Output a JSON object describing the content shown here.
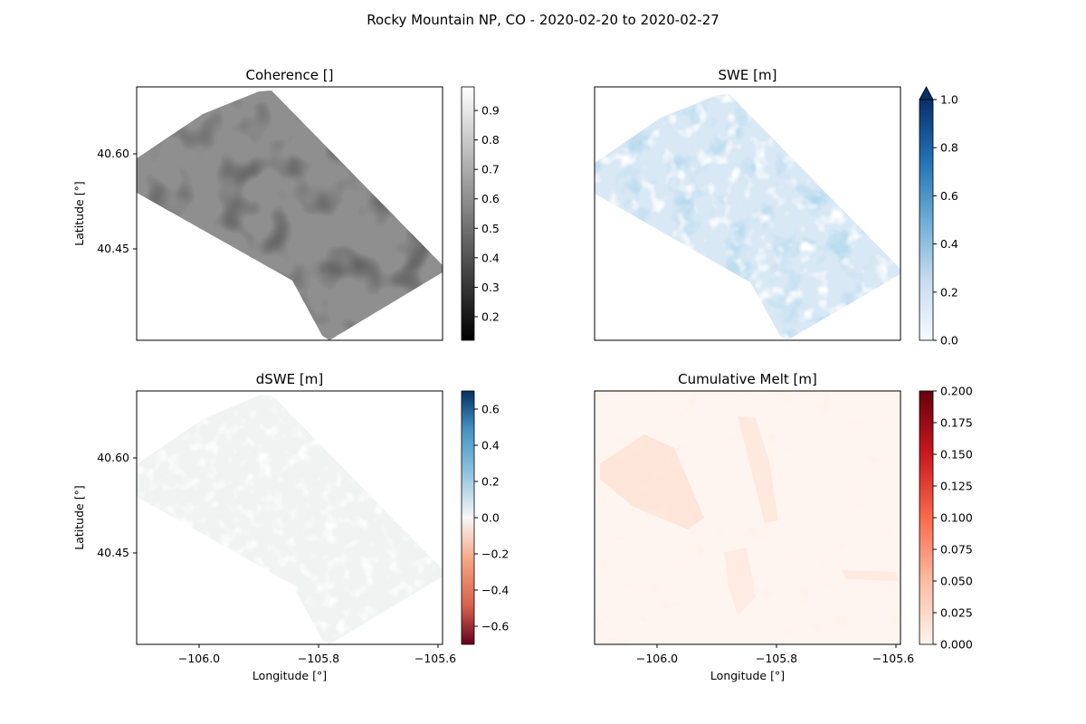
{
  "figure": {
    "suptitle": "Rocky Mountain NP, CO - 2020-02-20 to 2020-02-27"
  },
  "chart_data": [
    {
      "type": "heatmap",
      "title": "Coherence []",
      "xlabel": "",
      "ylabel": "Latitude [°]",
      "x_ticks": [],
      "y_ticks": [
        "40.60",
        "40.45"
      ],
      "colormap": "gray",
      "colorbar": {
        "min": 0.12,
        "max": 0.98,
        "ticks": [
          "0.2",
          "0.3",
          "0.4",
          "0.5",
          "0.6",
          "0.7",
          "0.8",
          "0.9"
        ],
        "extend_max": false
      },
      "colors": [
        "#000000",
        "#ffffff"
      ]
    },
    {
      "type": "heatmap",
      "title": "SWE [m]",
      "xlabel": "",
      "ylabel": "",
      "x_ticks": [],
      "y_ticks": [],
      "colormap": "Blues",
      "colorbar": {
        "min": 0.0,
        "max": 1.0,
        "ticks": [
          "0.0",
          "0.2",
          "0.4",
          "0.6",
          "0.8",
          "1.0"
        ],
        "extend_max": true
      },
      "colors": [
        "#f7fbff",
        "#c6dbef",
        "#6baed6",
        "#2171b5",
        "#08306b"
      ]
    },
    {
      "type": "heatmap",
      "title": "dSWE [m]",
      "xlabel": "Longitude [°]",
      "ylabel": "Latitude [°]",
      "x_ticks": [
        "−106.0",
        "−105.8",
        "−105.6"
      ],
      "y_ticks": [
        "40.60",
        "40.45"
      ],
      "colormap": "RdBu",
      "colorbar": {
        "min": -0.7,
        "max": 0.7,
        "ticks": [
          "0.6",
          "0.4",
          "0.2",
          "0.0",
          "−0.2",
          "−0.4",
          "−0.6"
        ],
        "extend_max": false
      },
      "colors": [
        "#67001f",
        "#d6604d",
        "#f4a582",
        "#f7f7f7",
        "#92c5de",
        "#4393c3",
        "#053061"
      ]
    },
    {
      "type": "heatmap",
      "title": "Cumulative Melt [m]",
      "xlabel": "Longitude [°]",
      "ylabel": "",
      "x_ticks": [
        "−106.0",
        "−105.8",
        "−105.6"
      ],
      "y_ticks": [],
      "colormap": "Reds",
      "colorbar": {
        "min": 0.0,
        "max": 0.2,
        "ticks": [
          "0.000",
          "0.025",
          "0.050",
          "0.075",
          "0.100",
          "0.125",
          "0.150",
          "0.175",
          "0.200"
        ],
        "extend_max": false
      },
      "colors": [
        "#fff5f0",
        "#fcbba1",
        "#fb6a4a",
        "#cb181d",
        "#67000d"
      ]
    }
  ]
}
